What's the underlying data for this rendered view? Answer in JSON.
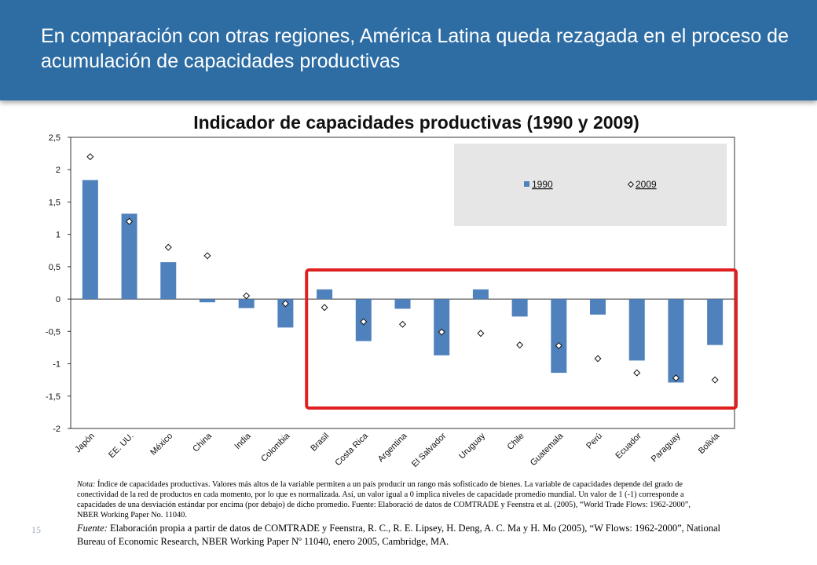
{
  "slide": {
    "title": "En comparación con otras regiones, América Latina queda rezagada en el proceso de acumulación de capacidades productivas",
    "page_number": "15"
  },
  "notes": {
    "nota_label": "Nota:",
    "nota_text": " Índice de capacidades productivas. Valores más altos de la variable permiten a un país producir un rango más sofisticado de bienes. La variable de capacidades depende del grado de conectividad  de la red de productos en cada momento, por lo que es normalizada.  Así, un valor igual a 0 implica niveles de capacidade promedio mundial. Un valor de 1 (-1) corresponde a capacidades de una desviación estándar por encima (por debajo) de dicho promedio. Fuente: Elaboració de datos de COMTRADE y Feenstra et al. (2005), “World Trade Flows: 1962-2000”, NBER Working Paper No. 11040.",
    "fuente_label": "Fuente:",
    "fuente_text": " Elaboración propia a partir de datos de COMTRADE  y Feenstra, R. C., R. E. Lipsey, H. Deng, A. C. Ma y H. Mo (2005), “W Flows: 1962-2000”, National Bureau of Economic Research, NBER Working Paper Nº 11040, enero 2005, Cambridge, MA."
  },
  "colors": {
    "bar": "#4f81bd",
    "highlight_box": "#e02020",
    "legend_bg": "#e6e6e6",
    "banner": "#2e6da4"
  },
  "chart_data": {
    "type": "bar",
    "title": "Indicador de capacidades productivas  (1990 y 2009)",
    "categories": [
      "Japón",
      "EE. UU.",
      "México",
      "China",
      "India",
      "Colombia",
      "Brasil",
      "Costa Rica",
      "Argentina",
      "El Salvador",
      "Uruguay",
      "Chile",
      "Guatemala",
      "Perú",
      "Ecuador",
      "Paraguay",
      "Bolivia"
    ],
    "series": [
      {
        "name": "1990",
        "kind": "bar",
        "values": [
          1.84,
          1.32,
          0.57,
          -0.05,
          -0.14,
          -0.44,
          0.15,
          -0.65,
          -0.15,
          -0.87,
          0.15,
          -0.27,
          -1.14,
          -0.24,
          -0.95,
          -1.29,
          -0.71
        ]
      },
      {
        "name": "2009",
        "kind": "marker",
        "marker": "diamond",
        "values": [
          2.2,
          1.2,
          0.8,
          0.67,
          0.05,
          -0.07,
          -0.13,
          -0.35,
          -0.39,
          -0.51,
          -0.53,
          -0.71,
          -0.72,
          -0.92,
          -1.14,
          -1.22,
          -1.25
        ]
      }
    ],
    "ylim": [
      -2,
      2.5
    ],
    "yticks": [
      "2,5",
      "2",
      "1,5",
      "1",
      "0,5",
      "0",
      "-0,5",
      "-1",
      "-1,5",
      "-2"
    ],
    "ytick_values": [
      2.5,
      2,
      1.5,
      1,
      0.5,
      0,
      -0.5,
      -1,
      -1.5,
      -2
    ],
    "xlabel": "",
    "ylabel": "",
    "legend_position": "top-right",
    "grid": false,
    "highlight_range": [
      "Brasil",
      "Bolivia"
    ]
  }
}
